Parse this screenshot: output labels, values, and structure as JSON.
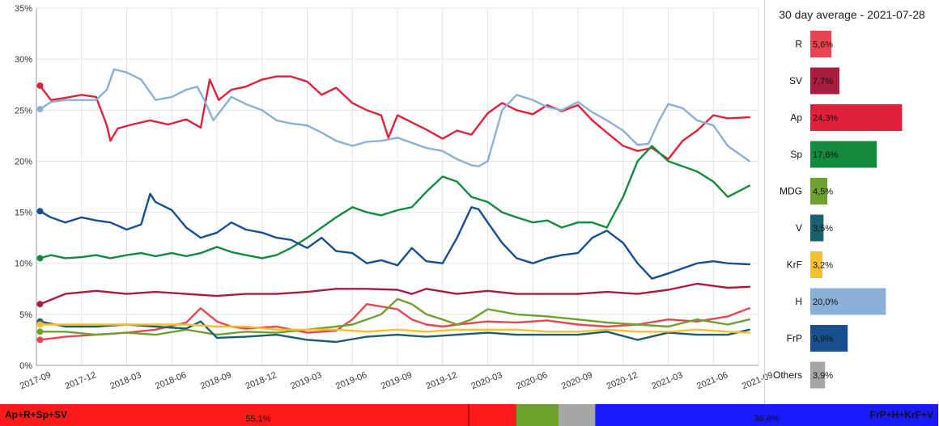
{
  "chart_data": [
    {
      "type": "line",
      "title": "",
      "xlabel": "",
      "ylabel": "",
      "ylim": [
        0,
        35
      ],
      "y_ticks": [
        0,
        5,
        10,
        15,
        20,
        25,
        30,
        35
      ],
      "y_tick_labels": [
        "0%",
        "5%",
        "10%",
        "15%",
        "20%",
        "25%",
        "30%",
        "35%"
      ],
      "x_ticks": [
        2017.67,
        2017.92,
        2018.17,
        2018.42,
        2018.67,
        2018.92,
        2019.17,
        2019.42,
        2019.67,
        2019.92,
        2020.17,
        2020.42,
        2020.67,
        2020.92,
        2021.17,
        2021.42,
        2021.67
      ],
      "x_tick_labels": [
        "2017-09",
        "2017-12",
        "2018-03",
        "2018-06",
        "2018-09",
        "2018-12",
        "2019-03",
        "2019-06",
        "2019-09",
        "2019-12",
        "2020-03",
        "2020-06",
        "2020-09",
        "2020-12",
        "2021-03",
        "2021-06",
        "2021-09"
      ],
      "xlim": [
        2017.67,
        2021.67
      ],
      "grid": true,
      "series": [
        {
          "name": "Ap",
          "color": "#e0213b",
          "x": [
            2017.69,
            2017.75,
            2017.83,
            2017.92,
            2018.0,
            2018.06,
            2018.08,
            2018.12,
            2018.2,
            2018.3,
            2018.4,
            2018.5,
            2018.58,
            2018.63,
            2018.68,
            2018.75,
            2018.83,
            2018.92,
            2019.0,
            2019.08,
            2019.17,
            2019.25,
            2019.33,
            2019.42,
            2019.5,
            2019.58,
            2019.62,
            2019.67,
            2019.75,
            2019.83,
            2019.92,
            2020.0,
            2020.08,
            2020.17,
            2020.25,
            2020.33,
            2020.42,
            2020.5,
            2020.58,
            2020.67,
            2020.75,
            2020.83,
            2020.92,
            2021.0,
            2021.08,
            2021.17,
            2021.25,
            2021.33,
            2021.42,
            2021.5,
            2021.62
          ],
          "values": [
            27.4,
            26.0,
            26.2,
            26.5,
            26.3,
            23.5,
            22.0,
            23.2,
            23.6,
            24.0,
            23.6,
            24.1,
            23.3,
            28.0,
            26.0,
            27.0,
            27.3,
            28.0,
            28.3,
            28.3,
            27.8,
            26.5,
            27.2,
            25.7,
            25.0,
            24.5,
            22.3,
            24.5,
            23.8,
            23.1,
            22.2,
            23.0,
            22.6,
            24.7,
            25.7,
            25.0,
            24.6,
            25.5,
            24.9,
            25.5,
            24.0,
            22.8,
            21.5,
            21.0,
            21.3,
            20.2,
            22.0,
            23.0,
            24.5,
            24.2,
            24.3
          ]
        },
        {
          "name": "H",
          "color": "#8bb0d8",
          "x": [
            2017.69,
            2017.75,
            2017.83,
            2017.92,
            2018.0,
            2018.06,
            2018.1,
            2018.17,
            2018.25,
            2018.33,
            2018.42,
            2018.5,
            2018.56,
            2018.6,
            2018.65,
            2018.75,
            2018.83,
            2018.92,
            2019.0,
            2019.08,
            2019.17,
            2019.25,
            2019.33,
            2019.42,
            2019.5,
            2019.58,
            2019.67,
            2019.75,
            2019.83,
            2019.92,
            2020.0,
            2020.08,
            2020.12,
            2020.17,
            2020.25,
            2020.33,
            2020.42,
            2020.5,
            2020.58,
            2020.67,
            2020.75,
            2020.83,
            2020.92,
            2021.0,
            2021.06,
            2021.12,
            2021.17,
            2021.25,
            2021.33,
            2021.42,
            2021.5,
            2021.62
          ],
          "values": [
            25.1,
            25.8,
            26.0,
            26.0,
            26.0,
            27.0,
            29.0,
            28.7,
            28.0,
            26.0,
            26.3,
            27.0,
            27.3,
            26.0,
            24.0,
            26.3,
            25.6,
            25.0,
            24.0,
            23.7,
            23.5,
            22.8,
            22.0,
            21.5,
            21.9,
            22.0,
            22.3,
            21.8,
            21.3,
            21.0,
            20.2,
            19.6,
            19.5,
            20.0,
            25.0,
            26.5,
            26.0,
            25.3,
            25.0,
            25.8,
            24.8,
            24.0,
            23.0,
            21.6,
            21.7,
            24.0,
            25.6,
            25.2,
            24.0,
            23.5,
            21.5,
            20.0
          ]
        },
        {
          "name": "Sp",
          "color": "#138a3d",
          "x": [
            2017.69,
            2017.75,
            2017.83,
            2017.92,
            2018.0,
            2018.08,
            2018.17,
            2018.25,
            2018.33,
            2018.42,
            2018.5,
            2018.58,
            2018.67,
            2018.75,
            2018.83,
            2018.92,
            2019.0,
            2019.08,
            2019.17,
            2019.25,
            2019.33,
            2019.42,
            2019.5,
            2019.58,
            2019.67,
            2019.75,
            2019.83,
            2019.92,
            2020.0,
            2020.08,
            2020.17,
            2020.25,
            2020.33,
            2020.42,
            2020.5,
            2020.58,
            2020.67,
            2020.75,
            2020.83,
            2020.92,
            2021.0,
            2021.08,
            2021.17,
            2021.25,
            2021.33,
            2021.42,
            2021.5,
            2021.62
          ],
          "values": [
            10.5,
            10.8,
            10.5,
            10.6,
            10.8,
            10.5,
            10.8,
            11.0,
            10.7,
            11.0,
            10.7,
            11.0,
            11.6,
            11.1,
            10.8,
            10.5,
            10.8,
            11.5,
            12.5,
            13.5,
            14.5,
            15.5,
            15.0,
            14.7,
            15.2,
            15.5,
            17.0,
            18.5,
            18.0,
            16.5,
            16.0,
            15.0,
            14.5,
            14.0,
            14.2,
            13.5,
            14.0,
            14.0,
            13.5,
            16.5,
            20.0,
            21.5,
            20.0,
            19.5,
            19.0,
            18.0,
            16.5,
            17.6
          ]
        },
        {
          "name": "FrP",
          "color": "#174f8f",
          "x": [
            2017.69,
            2017.75,
            2017.83,
            2017.92,
            2018.0,
            2018.08,
            2018.17,
            2018.25,
            2018.3,
            2018.33,
            2018.42,
            2018.5,
            2018.58,
            2018.67,
            2018.75,
            2018.83,
            2018.92,
            2019.0,
            2019.08,
            2019.17,
            2019.25,
            2019.33,
            2019.42,
            2019.5,
            2019.58,
            2019.67,
            2019.75,
            2019.83,
            2019.92,
            2020.0,
            2020.08,
            2020.12,
            2020.17,
            2020.25,
            2020.33,
            2020.42,
            2020.5,
            2020.58,
            2020.67,
            2020.75,
            2020.83,
            2020.92,
            2021.0,
            2021.08,
            2021.17,
            2021.25,
            2021.33,
            2021.42,
            2021.5,
            2021.62
          ],
          "values": [
            15.1,
            14.5,
            14.0,
            14.5,
            14.2,
            14.0,
            13.3,
            13.8,
            16.8,
            16.0,
            15.2,
            13.5,
            12.5,
            13.0,
            14.0,
            13.3,
            13.0,
            12.5,
            12.3,
            11.5,
            12.5,
            11.2,
            11.0,
            10.0,
            10.3,
            9.8,
            11.5,
            10.2,
            10.0,
            12.5,
            15.5,
            15.3,
            14.0,
            12.0,
            10.5,
            10.0,
            10.5,
            10.8,
            11.0,
            12.5,
            13.2,
            12.0,
            10.0,
            8.5,
            9.0,
            9.5,
            10.0,
            10.2,
            10.0,
            9.9
          ]
        },
        {
          "name": "SV",
          "color": "#a81d3f",
          "x": [
            2017.69,
            2017.83,
            2018.0,
            2018.17,
            2018.33,
            2018.5,
            2018.67,
            2018.83,
            2019.0,
            2019.17,
            2019.33,
            2019.5,
            2019.67,
            2019.75,
            2019.83,
            2020.0,
            2020.17,
            2020.33,
            2020.5,
            2020.67,
            2020.83,
            2021.0,
            2021.17,
            2021.33,
            2021.5,
            2021.62
          ],
          "values": [
            6.0,
            7.0,
            7.3,
            7.0,
            7.2,
            7.0,
            6.8,
            7.0,
            7.0,
            7.2,
            7.5,
            7.5,
            7.4,
            7.0,
            7.5,
            7.0,
            7.3,
            7.0,
            7.0,
            7.0,
            7.2,
            7.0,
            7.4,
            8.0,
            7.6,
            7.7
          ]
        },
        {
          "name": "R",
          "color": "#e84650",
          "x": [
            2017.69,
            2017.83,
            2018.0,
            2018.17,
            2018.33,
            2018.5,
            2018.58,
            2018.67,
            2018.75,
            2018.83,
            2019.0,
            2019.17,
            2019.33,
            2019.42,
            2019.5,
            2019.67,
            2019.75,
            2019.83,
            2019.92,
            2020.0,
            2020.17,
            2020.33,
            2020.5,
            2020.67,
            2020.83,
            2021.0,
            2021.17,
            2021.33,
            2021.5,
            2021.62
          ],
          "values": [
            2.5,
            2.8,
            3.0,
            3.2,
            3.5,
            4.2,
            5.6,
            4.3,
            3.8,
            3.6,
            3.8,
            3.2,
            3.4,
            4.5,
            6.0,
            5.5,
            4.5,
            4.0,
            3.8,
            4.0,
            4.3,
            4.2,
            4.4,
            4.0,
            3.8,
            4.0,
            4.5,
            4.3,
            4.8,
            5.6
          ]
        },
        {
          "name": "MDG",
          "color": "#6ea22e",
          "x": [
            2017.69,
            2017.83,
            2018.0,
            2018.17,
            2018.33,
            2018.5,
            2018.67,
            2018.83,
            2019.0,
            2019.17,
            2019.33,
            2019.42,
            2019.5,
            2019.58,
            2019.67,
            2019.75,
            2019.83,
            2019.92,
            2020.0,
            2020.08,
            2020.17,
            2020.33,
            2020.5,
            2020.67,
            2020.83,
            2021.0,
            2021.17,
            2021.33,
            2021.5,
            2021.62
          ],
          "values": [
            3.3,
            3.3,
            3.0,
            3.2,
            3.0,
            3.5,
            3.0,
            3.3,
            3.2,
            3.5,
            3.8,
            4.0,
            4.5,
            5.0,
            6.5,
            6.0,
            5.0,
            4.5,
            4.0,
            4.5,
            5.5,
            5.0,
            4.8,
            4.5,
            4.2,
            4.0,
            3.8,
            4.5,
            4.0,
            4.5
          ]
        },
        {
          "name": "V",
          "color": "#1c5f6f",
          "x": [
            2017.69,
            2017.83,
            2018.0,
            2018.17,
            2018.33,
            2018.5,
            2018.58,
            2018.67,
            2018.83,
            2019.0,
            2019.17,
            2019.33,
            2019.5,
            2019.67,
            2019.83,
            2020.0,
            2020.17,
            2020.33,
            2020.5,
            2020.67,
            2020.83,
            2021.0,
            2021.17,
            2021.33,
            2021.5,
            2021.62
          ],
          "values": [
            4.3,
            3.8,
            3.8,
            4.0,
            3.8,
            3.6,
            4.3,
            2.7,
            2.8,
            3.0,
            2.5,
            2.3,
            2.8,
            3.0,
            2.8,
            3.0,
            3.2,
            3.0,
            3.0,
            3.0,
            3.3,
            2.5,
            3.2,
            3.0,
            3.0,
            3.5
          ]
        },
        {
          "name": "KrF",
          "color": "#f5c02b",
          "x": [
            2017.69,
            2017.83,
            2018.0,
            2018.17,
            2018.33,
            2018.5,
            2018.67,
            2018.83,
            2019.0,
            2019.17,
            2019.33,
            2019.5,
            2019.67,
            2019.83,
            2020.0,
            2020.17,
            2020.33,
            2020.5,
            2020.67,
            2020.83,
            2021.0,
            2021.17,
            2021.33,
            2021.5,
            2021.62
          ],
          "values": [
            4.0,
            4.0,
            4.0,
            4.0,
            4.0,
            4.0,
            3.8,
            3.8,
            3.5,
            3.5,
            3.5,
            3.3,
            3.5,
            3.3,
            3.5,
            3.5,
            3.5,
            3.3,
            3.3,
            3.5,
            3.3,
            3.3,
            3.5,
            3.3,
            3.2
          ]
        }
      ]
    },
    {
      "type": "bar",
      "orientation": "horizontal",
      "title": "30 day average - 2021-07-28",
      "xlim": [
        0,
        30
      ],
      "categories": [
        "R",
        "SV",
        "Ap",
        "Sp",
        "MDG",
        "V",
        "KrF",
        "H",
        "FrP",
        "Others"
      ],
      "values": [
        5.6,
        7.7,
        24.3,
        17.6,
        4.5,
        3.5,
        3.2,
        20.0,
        9.9,
        3.9
      ],
      "value_labels": [
        "5,6%",
        "7,7%",
        "24,3%",
        "17,6%",
        "4,5%",
        "3,5%",
        "3,2%",
        "20,0%",
        "9,9%",
        "3,9%"
      ],
      "colors": [
        "#e84650",
        "#a81d3f",
        "#e0213b",
        "#138a3d",
        "#6ea22e",
        "#1c5f6f",
        "#f5c02b",
        "#8bb0d8",
        "#174f8f",
        "#a6a6a6"
      ]
    },
    {
      "type": "bar",
      "orientation": "stacked-horizontal",
      "left_label": "Ap+R+Sp+SV",
      "right_label": "FrP+H+KrF+V",
      "segments": [
        {
          "name": "Ap+R+Sp+SV",
          "value": 55.1,
          "label": "55,1%",
          "color": "#ff1a1a"
        },
        {
          "name": "MDG",
          "value": 4.5,
          "label": "",
          "color": "#6ea22e"
        },
        {
          "name": "Others",
          "value": 3.9,
          "label": "",
          "color": "#a6a6a6"
        },
        {
          "name": "FrP+H+KrF+V",
          "value": 36.6,
          "label": "36,6%",
          "color": "#1a1aff"
        }
      ],
      "majority_marker": 50
    }
  ]
}
